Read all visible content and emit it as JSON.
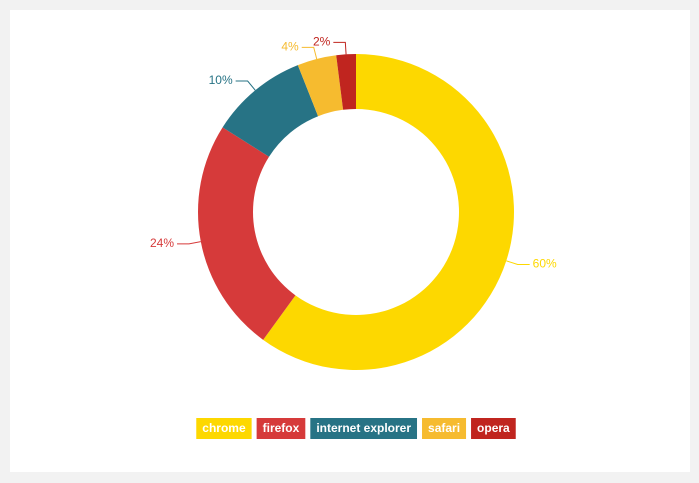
{
  "chart_data": {
    "type": "donut",
    "categories": [
      "chrome",
      "firefox",
      "internet explorer",
      "safari",
      "opera"
    ],
    "values": [
      60,
      24,
      10,
      4,
      2
    ],
    "value_labels": [
      "60%",
      "24%",
      "10%",
      "4%",
      "2%"
    ],
    "colors": [
      "#fdd800",
      "#d63a3a",
      "#277385",
      "#f6bb2f",
      "#c0251f"
    ],
    "legend": "bottom"
  }
}
